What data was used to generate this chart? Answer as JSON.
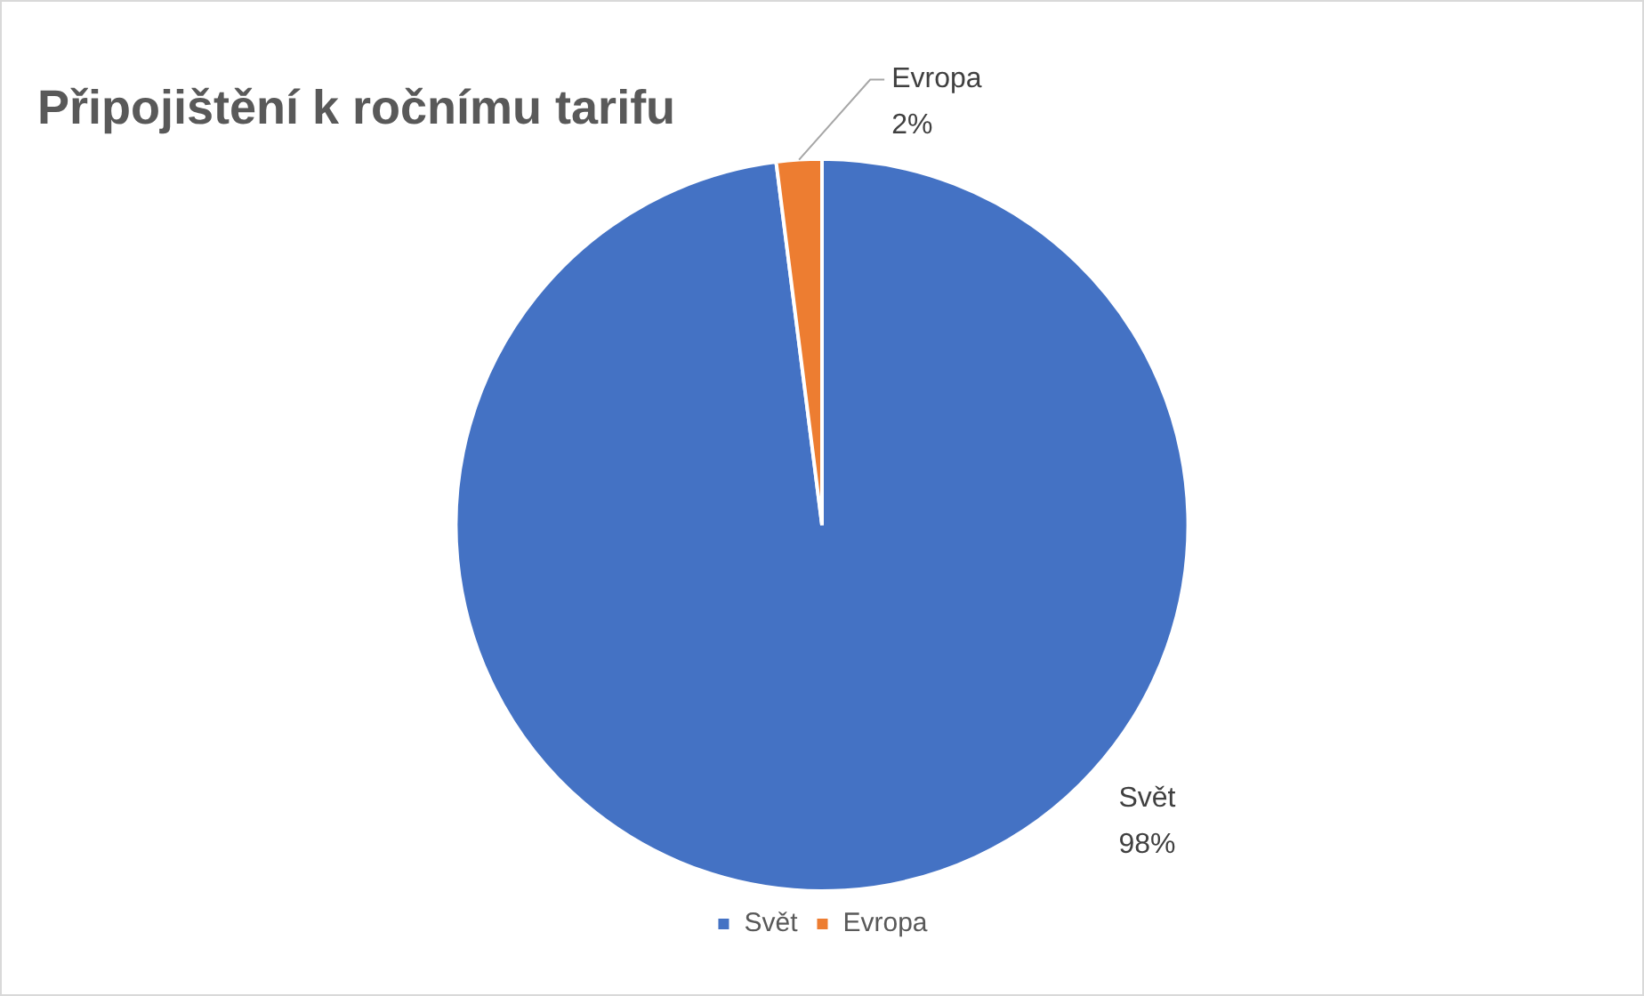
{
  "chart_data": {
    "type": "pie",
    "title": "Připojištění k ročnímu tarifu",
    "categories": [
      "Svět",
      "Evropa"
    ],
    "values": [
      98,
      2
    ],
    "colors": [
      "#4472c4",
      "#ed7d31"
    ],
    "value_labels": [
      "98%",
      "2%"
    ],
    "legend": "bottom"
  }
}
